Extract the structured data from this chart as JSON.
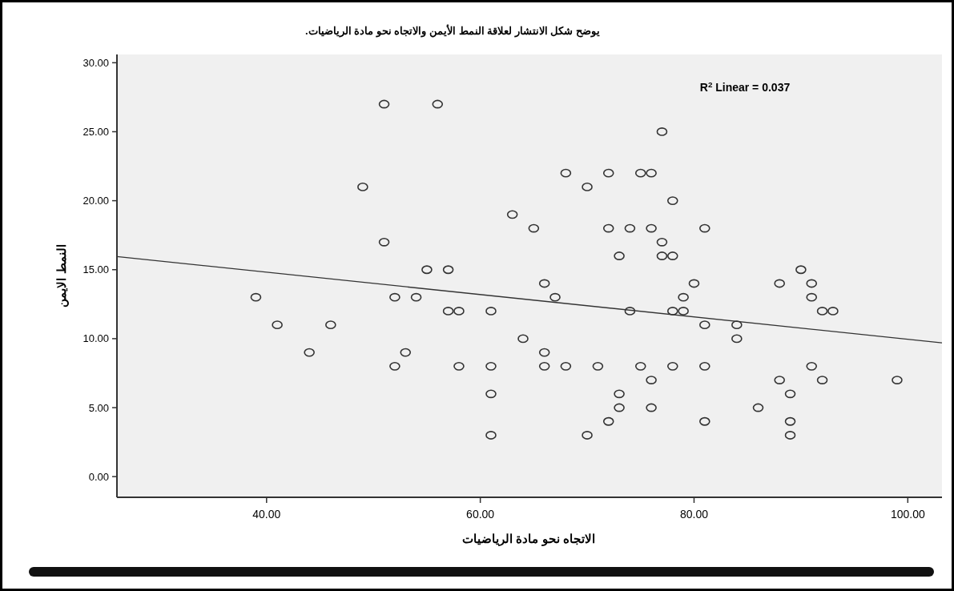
{
  "chart_data": {
    "type": "scatter",
    "title": "يوضح شكل الانتشار لعلاقة النمط الأيمن والاتجاه نحو مادة الرياضيات.",
    "xlabel": "الاتجاه نحو مادة الرياضيات",
    "ylabel": "النمط الايمن",
    "annotations": [
      "R$^{2}$ Linear = 0.037"
    ],
    "xlim": [
      26,
      103.2
    ],
    "ylim": [
      -1.5,
      30.6
    ],
    "xticks": [
      {
        "value": 40,
        "label": "40.00"
      },
      {
        "value": 60,
        "label": "60.00"
      },
      {
        "value": 80,
        "label": "80.00"
      },
      {
        "value": 100,
        "label": "100.00"
      }
    ],
    "yticks": [
      {
        "value": 0,
        "label": "0.00"
      },
      {
        "value": 5,
        "label": "5.00"
      },
      {
        "value": 10,
        "label": "10.00"
      },
      {
        "value": 15,
        "label": "15.00"
      },
      {
        "value": 20,
        "label": "20.00"
      },
      {
        "value": 25,
        "label": "25.00"
      },
      {
        "value": 30,
        "label": "30.00"
      }
    ],
    "grid": false,
    "marker": "circle",
    "series": [
      {
        "color": "#333333",
        "x": [
          39,
          41,
          44,
          46,
          49,
          51,
          51,
          52,
          52,
          53,
          54,
          55,
          56,
          57,
          57,
          58,
          58,
          61,
          61,
          61,
          61,
          63,
          64,
          65,
          66,
          66,
          66,
          67,
          68,
          68,
          70,
          70,
          71,
          72,
          72,
          72,
          73,
          73,
          73,
          74,
          74,
          75,
          75,
          76,
          76,
          76,
          76,
          77,
          77,
          77,
          78,
          78,
          78,
          78,
          79,
          79,
          80,
          81,
          81,
          81,
          81,
          84,
          84,
          86,
          88,
          88,
          89,
          89,
          89,
          90,
          91,
          91,
          91,
          92,
          92,
          93,
          99
        ],
        "values": [
          13,
          11,
          9,
          11,
          21,
          27,
          17,
          13,
          8,
          9,
          13,
          15,
          27,
          15,
          12,
          12,
          8,
          12,
          8,
          6,
          3,
          19,
          10,
          18,
          14,
          9,
          8,
          13,
          22,
          8,
          21,
          3,
          8,
          22,
          18,
          4,
          16,
          6,
          5,
          18,
          12,
          22,
          8,
          22,
          18,
          7,
          5,
          25,
          17,
          16,
          20,
          16,
          12,
          8,
          13,
          12,
          14,
          18,
          11,
          8,
          4,
          11,
          10,
          5,
          14,
          7,
          6,
          4,
          3,
          15,
          14,
          13,
          8,
          12,
          7,
          12,
          7
        ]
      },
      {
        "type": "line",
        "color": "#333333",
        "line_style": "solid",
        "marker": "none",
        "x": [
          26,
          103.2
        ],
        "values": [
          15.95,
          9.7
        ]
      }
    ]
  }
}
